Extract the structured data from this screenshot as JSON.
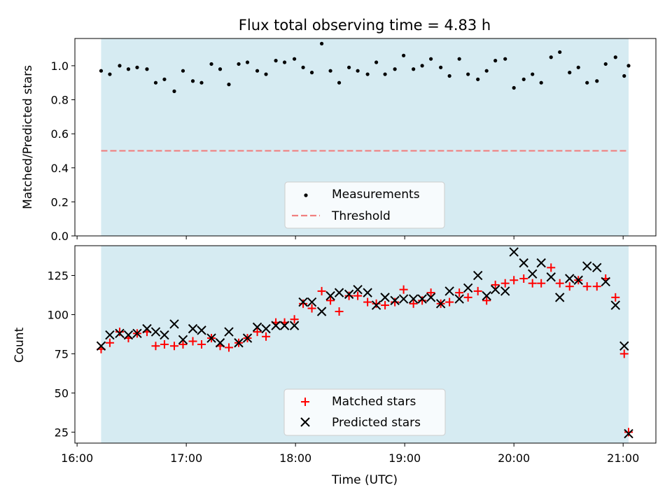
{
  "chart_data": [
    {
      "type": "scatter",
      "title": "Flux total observing time = 4.83 h",
      "xlabel": "",
      "ylabel": "Matched/Predicted stars",
      "xlim_hours": [
        15.98,
        21.3
      ],
      "ylim": [
        0,
        1.16
      ],
      "yticks": [
        0.0,
        0.2,
        0.4,
        0.6,
        0.8,
        1.0
      ],
      "ytick_labels": [
        "0.0",
        "0.2",
        "0.4",
        "0.6",
        "0.8",
        "1.0"
      ],
      "observing_window_hours": [
        16.22,
        21.05
      ],
      "observing_window_color": "#add8e6",
      "threshold": 0.5,
      "threshold_color": "#f08080",
      "legend": {
        "placement": "lower center",
        "entries": [
          "Measurements",
          "Threshold"
        ]
      },
      "series": [
        {
          "name": "Measurements",
          "color": "#000000",
          "x_hours": [
            16.22,
            16.3,
            16.39,
            16.47,
            16.55,
            16.64,
            16.72,
            16.8,
            16.89,
            16.97,
            17.06,
            17.14,
            17.23,
            17.31,
            17.39,
            17.48,
            17.56,
            17.65,
            17.73,
            17.82,
            17.9,
            17.99,
            18.07,
            18.15,
            18.24,
            18.32,
            18.4,
            18.49,
            18.57,
            18.66,
            18.74,
            18.82,
            18.91,
            18.99,
            19.08,
            19.16,
            19.24,
            19.33,
            19.41,
            19.5,
            19.58,
            19.67,
            19.75,
            19.83,
            19.92,
            20.0,
            20.09,
            20.17,
            20.25,
            20.34,
            20.42,
            20.51,
            20.59,
            20.67,
            20.76,
            20.84,
            20.93,
            21.01,
            21.05
          ],
          "values": [
            0.97,
            0.95,
            1.0,
            0.98,
            0.99,
            0.98,
            0.9,
            0.92,
            0.85,
            0.97,
            0.91,
            0.9,
            1.01,
            0.98,
            0.89,
            1.01,
            1.02,
            0.97,
            0.95,
            1.03,
            1.02,
            1.04,
            0.99,
            0.96,
            1.13,
            0.97,
            0.9,
            0.99,
            0.97,
            0.95,
            1.02,
            0.95,
            0.98,
            1.06,
            0.98,
            1.0,
            1.04,
            0.99,
            0.94,
            1.04,
            0.95,
            0.92,
            0.97,
            1.03,
            1.04,
            0.87,
            0.92,
            0.95,
            0.9,
            1.05,
            1.08,
            0.96,
            0.99,
            0.9,
            0.91,
            1.01,
            1.05,
            0.94,
            1.0
          ]
        },
        {
          "name": "Threshold",
          "color": "#f08080",
          "x_hours": [
            16.22,
            21.05
          ],
          "values": [
            0.5,
            0.5
          ]
        }
      ]
    },
    {
      "type": "scatter",
      "title": "",
      "xlabel": "Time (UTC)",
      "ylabel": "Count",
      "xlim_hours": [
        15.98,
        21.3
      ],
      "ylim": [
        18,
        144
      ],
      "xticks_hours": [
        16,
        17,
        18,
        19,
        20,
        21
      ],
      "xtick_labels": [
        "16:00",
        "17:00",
        "18:00",
        "19:00",
        "20:00",
        "21:00"
      ],
      "yticks": [
        25,
        50,
        75,
        100,
        125
      ],
      "ytick_labels": [
        "25",
        "50",
        "75",
        "100",
        "125"
      ],
      "observing_window_hours": [
        16.22,
        21.05
      ],
      "observing_window_color": "#add8e6",
      "legend": {
        "placement": "lower center",
        "entries": [
          "Matched stars",
          "Predicted stars"
        ]
      },
      "series": [
        {
          "name": "Matched stars",
          "marker": "plus",
          "color": "#ff0000",
          "x_hours": [
            16.22,
            16.3,
            16.39,
            16.47,
            16.55,
            16.64,
            16.72,
            16.8,
            16.89,
            16.97,
            17.06,
            17.14,
            17.23,
            17.31,
            17.39,
            17.48,
            17.56,
            17.65,
            17.73,
            17.82,
            17.9,
            17.99,
            18.07,
            18.15,
            18.24,
            18.32,
            18.4,
            18.49,
            18.57,
            18.66,
            18.74,
            18.82,
            18.91,
            18.99,
            19.08,
            19.16,
            19.24,
            19.33,
            19.41,
            19.5,
            19.58,
            19.67,
            19.75,
            19.83,
            19.92,
            20.0,
            20.09,
            20.17,
            20.25,
            20.34,
            20.42,
            20.51,
            20.59,
            20.67,
            20.76,
            20.84,
            20.93,
            21.01,
            21.05
          ],
          "values": [
            78,
            82,
            89,
            85,
            88,
            89,
            80,
            81,
            80,
            81,
            83,
            81,
            85,
            80,
            79,
            82,
            85,
            89,
            86,
            95,
            95,
            97,
            107,
            104,
            115,
            109,
            102,
            112,
            112,
            108,
            107,
            106,
            108,
            116,
            107,
            109,
            114,
            107,
            108,
            114,
            111,
            115,
            109,
            119,
            120,
            122,
            123,
            120,
            120,
            130,
            120,
            118,
            122,
            118,
            118,
            123,
            111,
            75,
            25
          ]
        },
        {
          "name": "Predicted stars",
          "marker": "x",
          "color": "#000000",
          "x_hours": [
            16.22,
            16.3,
            16.39,
            16.47,
            16.55,
            16.64,
            16.72,
            16.8,
            16.89,
            16.97,
            17.06,
            17.14,
            17.23,
            17.31,
            17.39,
            17.48,
            17.56,
            17.65,
            17.73,
            17.82,
            17.9,
            17.99,
            18.07,
            18.15,
            18.24,
            18.32,
            18.4,
            18.49,
            18.57,
            18.66,
            18.74,
            18.82,
            18.91,
            18.99,
            19.08,
            19.16,
            19.24,
            19.33,
            19.41,
            19.5,
            19.58,
            19.67,
            19.75,
            19.83,
            19.92,
            20.0,
            20.09,
            20.17,
            20.25,
            20.34,
            20.42,
            20.51,
            20.59,
            20.67,
            20.76,
            20.84,
            20.93,
            21.01,
            21.05
          ],
          "values": [
            80,
            87,
            88,
            87,
            88,
            91,
            89,
            87,
            94,
            84,
            91,
            90,
            85,
            82,
            89,
            82,
            85,
            92,
            91,
            93,
            93,
            93,
            108,
            108,
            102,
            112,
            114,
            113,
            116,
            114,
            106,
            111,
            109,
            110,
            110,
            110,
            111,
            107,
            115,
            110,
            117,
            125,
            112,
            116,
            115,
            140,
            133,
            126,
            133,
            124,
            111,
            123,
            122,
            131,
            130,
            121,
            106,
            80,
            24
          ]
        }
      ]
    }
  ]
}
